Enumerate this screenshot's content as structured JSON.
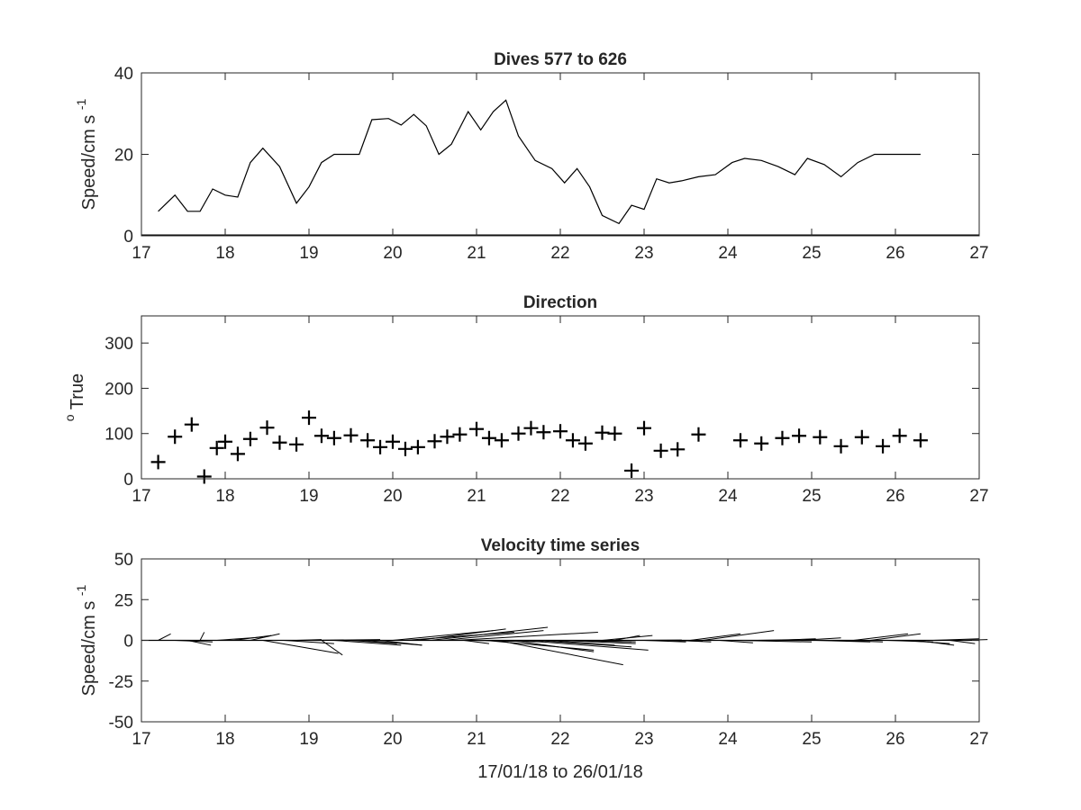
{
  "chart_data": [
    {
      "type": "line",
      "title": "Dives 577 to 626",
      "ylabel": "Speed/cm s",
      "ylabel_superscript": "-1",
      "xlabel": "",
      "xlim": [
        17,
        27
      ],
      "ylim": [
        0,
        40
      ],
      "xticks": [
        "17",
        "18",
        "19",
        "20",
        "21",
        "22",
        "23",
        "24",
        "25",
        "26",
        "27"
      ],
      "yticks": [
        "0",
        "20",
        "40"
      ],
      "grid": false,
      "series": [
        {
          "x": [
            17.2,
            17.4,
            17.55,
            17.7,
            17.85,
            18.0,
            18.15,
            18.3,
            18.45,
            18.65,
            18.85,
            19.0,
            19.15,
            19.3,
            19.45,
            19.6,
            19.75,
            19.95,
            20.1,
            20.25,
            20.4,
            20.55,
            20.7,
            20.9,
            21.05,
            21.2,
            21.35,
            21.5,
            21.7,
            21.9,
            22.05,
            22.2,
            22.35,
            22.5,
            22.7,
            22.85,
            23.0,
            23.15,
            23.3,
            23.45,
            23.65,
            23.85,
            24.05,
            24.2,
            24.4,
            24.6,
            24.8,
            24.95,
            25.15,
            25.35,
            25.55,
            25.75,
            25.95,
            26.15,
            26.3
          ],
          "y": [
            6,
            10,
            6,
            6,
            11.5,
            10,
            9.5,
            18,
            21.5,
            17,
            8,
            12,
            18,
            20,
            20,
            20,
            28.5,
            28.8,
            27.2,
            29.8,
            27,
            20,
            22.5,
            30.5,
            26,
            30.5,
            33.3,
            24.5,
            18.5,
            16.5,
            13,
            16.5,
            12,
            5,
            3,
            7.5,
            6.5,
            14,
            13,
            13.5,
            14.5,
            15,
            18,
            19,
            18.5,
            17,
            15,
            19,
            17.5,
            14.5,
            18,
            20,
            20,
            20,
            20
          ]
        }
      ]
    },
    {
      "type": "scatter",
      "title": "Direction",
      "ylabel": "True",
      "ylabel_superscript": "o",
      "xlabel": "",
      "xlim": [
        17,
        27
      ],
      "ylim": [
        0,
        360
      ],
      "xticks": [
        "17",
        "18",
        "19",
        "20",
        "21",
        "22",
        "23",
        "24",
        "25",
        "26",
        "27"
      ],
      "yticks": [
        "0",
        "100",
        "200",
        "300"
      ],
      "grid": false,
      "marker": "+",
      "series": [
        {
          "x": [
            17.2,
            17.4,
            17.6,
            17.75,
            17.9,
            18.0,
            18.15,
            18.3,
            18.5,
            18.65,
            18.85,
            19.0,
            19.15,
            19.3,
            19.5,
            19.7,
            19.85,
            20.0,
            20.15,
            20.3,
            20.5,
            20.65,
            20.8,
            21.0,
            21.15,
            21.3,
            21.5,
            21.65,
            21.8,
            22.0,
            22.15,
            22.3,
            22.5,
            22.65,
            22.85,
            23.0,
            23.2,
            23.4,
            23.65,
            24.15,
            24.4,
            24.65,
            24.85,
            25.1,
            25.35,
            25.6,
            25.85,
            26.05,
            26.3
          ],
          "y": [
            37,
            93,
            120,
            5,
            68,
            82,
            55,
            88,
            113,
            80,
            76,
            135,
            95,
            90,
            96,
            85,
            70,
            82,
            66,
            70,
            83,
            93,
            98,
            110,
            90,
            85,
            100,
            112,
            103,
            105,
            85,
            78,
            102,
            100,
            18,
            112,
            62,
            65,
            98,
            85,
            78,
            90,
            95,
            92,
            72,
            92,
            72,
            95,
            85
          ]
        }
      ]
    },
    {
      "type": "line",
      "subtype": "velocity-stick-plot",
      "title": "Velocity time series",
      "ylabel": "Speed/cm s",
      "ylabel_superscript": "-1",
      "xlabel": "17/01/18 to 26/01/18",
      "xlim": [
        17,
        27
      ],
      "ylim": [
        -50,
        50
      ],
      "xticks": [
        "17",
        "18",
        "19",
        "20",
        "21",
        "22",
        "23",
        "24",
        "25",
        "26",
        "27"
      ],
      "yticks": [
        "-50",
        "-25",
        "0",
        "25",
        "50"
      ],
      "grid": false,
      "sticks": [
        {
          "x": 17.2,
          "u": 0.15,
          "v": 4
        },
        {
          "x": 17.4,
          "u": 0.45,
          "v": -1
        },
        {
          "x": 17.55,
          "u": 0.28,
          "v": -3
        },
        {
          "x": 17.7,
          "u": 0.05,
          "v": 5
        },
        {
          "x": 17.9,
          "u": 0.55,
          "v": 2
        },
        {
          "x": 18.1,
          "u": 0.45,
          "v": 3
        },
        {
          "x": 18.3,
          "u": 0.35,
          "v": 4
        },
        {
          "x": 18.45,
          "u": 0.9,
          "v": -8
        },
        {
          "x": 18.7,
          "u": 0.6,
          "v": -2
        },
        {
          "x": 18.85,
          "u": 0.3,
          "v": 0.5
        },
        {
          "x": 19.0,
          "u": 0.85,
          "v": 0.5
        },
        {
          "x": 19.15,
          "u": 0.25,
          "v": -9
        },
        {
          "x": 19.3,
          "u": 0.8,
          "v": -3
        },
        {
          "x": 19.5,
          "u": 0.55,
          "v": -2
        },
        {
          "x": 19.65,
          "u": 0.7,
          "v": -3
        },
        {
          "x": 19.85,
          "u": 0.5,
          "v": -3
        },
        {
          "x": 20.0,
          "u": 1.2,
          "v": 6
        },
        {
          "x": 20.15,
          "u": 1.3,
          "v": 5
        },
        {
          "x": 20.3,
          "u": 1.05,
          "v": 7
        },
        {
          "x": 20.45,
          "u": 1.4,
          "v": 8
        },
        {
          "x": 20.6,
          "u": 1.2,
          "v": 6
        },
        {
          "x": 20.75,
          "u": 1.7,
          "v": 5
        },
        {
          "x": 20.85,
          "u": 0.3,
          "v": -2
        },
        {
          "x": 20.95,
          "u": 0.85,
          "v": -1
        },
        {
          "x": 21.1,
          "u": 1.3,
          "v": -6
        },
        {
          "x": 21.25,
          "u": 1.5,
          "v": -15
        },
        {
          "x": 21.4,
          "u": 1.0,
          "v": -7
        },
        {
          "x": 21.55,
          "u": 1.5,
          "v": -6
        },
        {
          "x": 21.7,
          "u": 1.15,
          "v": -4
        },
        {
          "x": 21.85,
          "u": 0.8,
          "v": -3
        },
        {
          "x": 22.0,
          "u": 0.9,
          "v": -2
        },
        {
          "x": 22.15,
          "u": 0.7,
          "v": -1
        },
        {
          "x": 22.3,
          "u": 0.6,
          "v": -1
        },
        {
          "x": 22.5,
          "u": 0.6,
          "v": 3
        },
        {
          "x": 22.65,
          "u": 0.3,
          "v": 3
        },
        {
          "x": 22.85,
          "u": 0.6,
          "v": 0.2
        },
        {
          "x": 23.0,
          "u": 0.5,
          "v": -1
        },
        {
          "x": 23.2,
          "u": 0.5,
          "v": -0.5
        },
        {
          "x": 23.4,
          "u": 0.4,
          "v": -1
        },
        {
          "x": 23.55,
          "u": 0.6,
          "v": 4
        },
        {
          "x": 23.7,
          "u": 0.85,
          "v": 6
        },
        {
          "x": 23.9,
          "u": 0.4,
          "v": -1.5
        },
        {
          "x": 24.1,
          "u": 0.9,
          "v": -1
        },
        {
          "x": 24.35,
          "u": 0.5,
          "v": 0.5
        },
        {
          "x": 24.6,
          "u": 0.45,
          "v": 1
        },
        {
          "x": 24.85,
          "u": 0.5,
          "v": 1.5
        },
        {
          "x": 25.05,
          "u": 0.65,
          "v": -1
        },
        {
          "x": 25.3,
          "u": 0.55,
          "v": -1
        },
        {
          "x": 25.5,
          "u": 0.65,
          "v": 4
        },
        {
          "x": 25.7,
          "u": 0.6,
          "v": 4
        },
        {
          "x": 25.9,
          "u": 0.55,
          "v": -1
        },
        {
          "x": 26.1,
          "u": 0.55,
          "v": -2
        },
        {
          "x": 26.25,
          "u": 0.45,
          "v": -3
        },
        {
          "x": 26.45,
          "u": 0.55,
          "v": 1
        },
        {
          "x": 26.65,
          "u": 0.3,
          "v": -2
        },
        {
          "x": 26.8,
          "u": 0.3,
          "v": 0.5
        }
      ]
    }
  ]
}
